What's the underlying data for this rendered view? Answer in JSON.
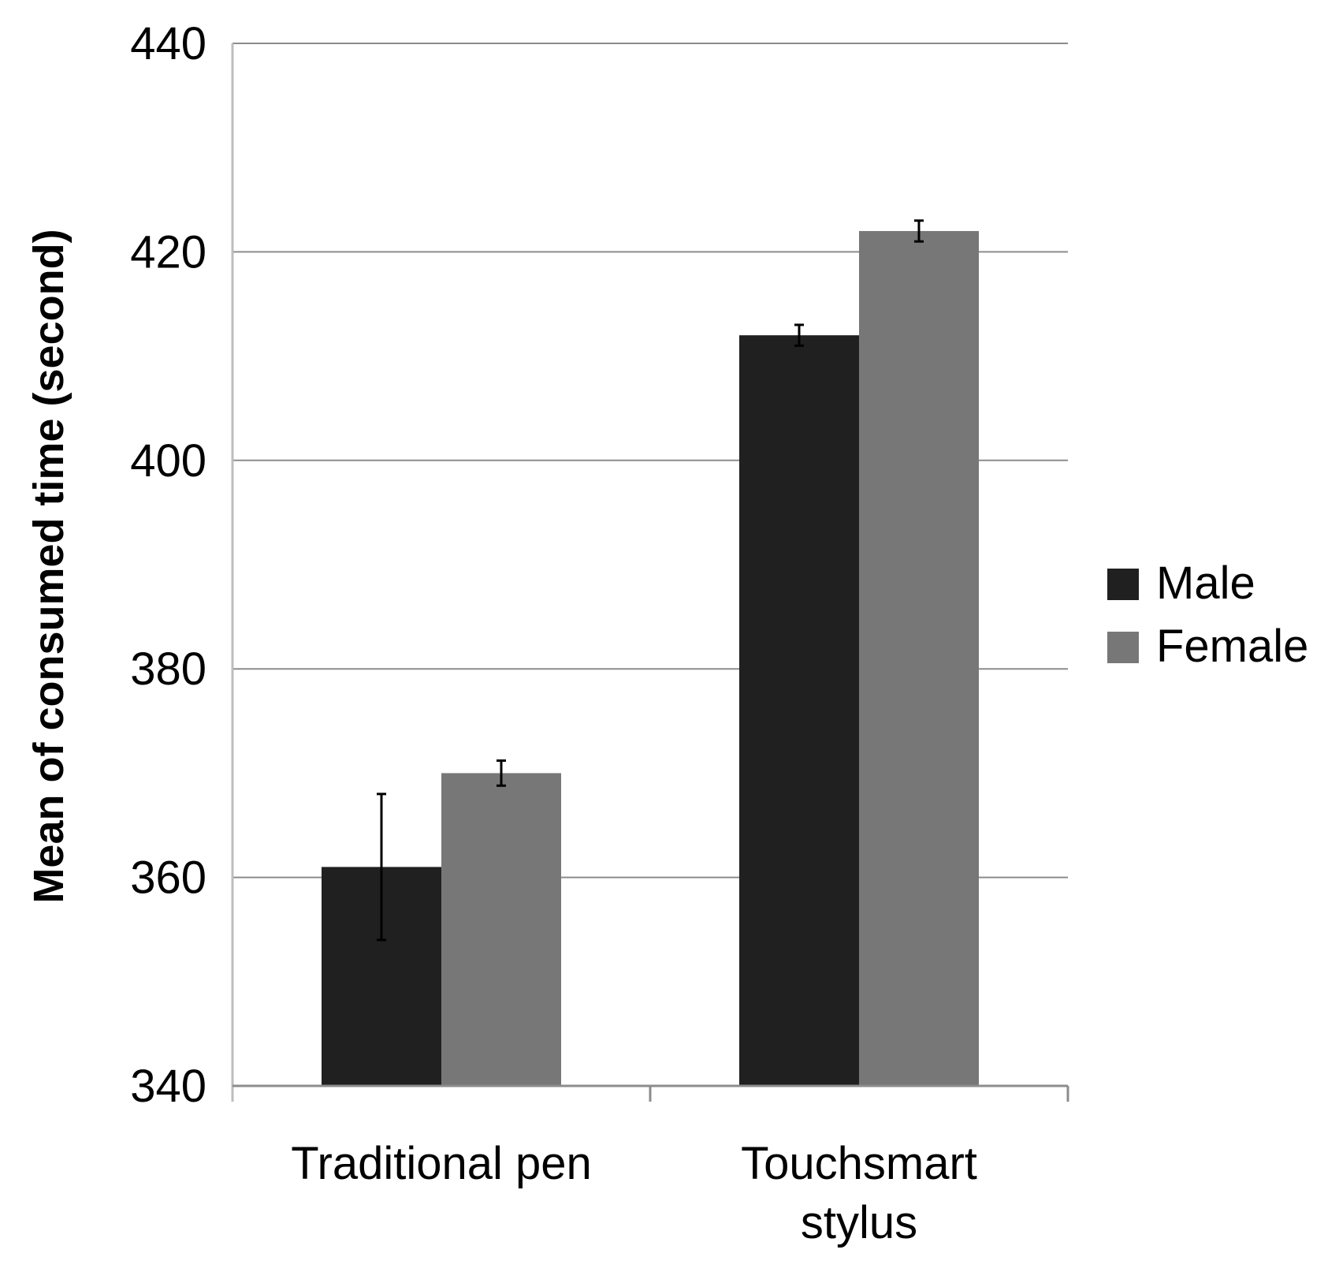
{
  "chart_data": {
    "type": "bar",
    "categories": [
      "Traditional pen",
      "Touchsmart stylus"
    ],
    "category_lines": [
      [
        "Traditional pen"
      ],
      [
        "Touchsmart",
        "stylus"
      ]
    ],
    "series": [
      {
        "name": "Male",
        "values": [
          361,
          412
        ],
        "error": [
          7,
          1
        ],
        "color": "#202020"
      },
      {
        "name": "Female",
        "values": [
          370,
          422
        ],
        "error": [
          1.2,
          1
        ],
        "color": "#777777"
      }
    ],
    "xlabel": "",
    "ylabel": "Mean of consumed time (second)",
    "ylim": [
      340,
      440
    ],
    "yticks": [
      340,
      360,
      380,
      400,
      420,
      440
    ],
    "grid": true,
    "legend": "right"
  }
}
